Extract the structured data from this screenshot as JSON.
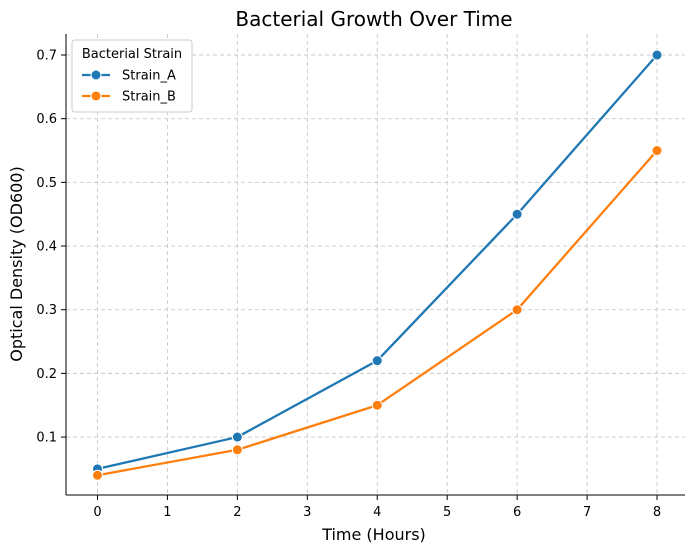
{
  "chart_data": {
    "type": "line",
    "title": "Bacterial Growth Over Time",
    "xlabel": "Time (Hours)",
    "ylabel": "Optical Density (OD600)",
    "xlim": [
      -0.45,
      8.4
    ],
    "ylim": [
      0.009,
      0.733
    ],
    "xticks": [
      0,
      1,
      2,
      3,
      4,
      5,
      6,
      7,
      8
    ],
    "yticks": [
      0.1,
      0.2,
      0.3,
      0.4,
      0.5,
      0.6,
      0.7
    ],
    "grid": true,
    "legend": {
      "title": "Bacterial Strain",
      "placement": "top-left"
    },
    "x": [
      0,
      2,
      4,
      6,
      8
    ],
    "series": [
      {
        "name": "Strain_A",
        "color": "#1f77b4",
        "values": [
          0.05,
          0.1,
          0.22,
          0.45,
          0.7
        ]
      },
      {
        "name": "Strain_B",
        "color": "#ff7f0e",
        "values": [
          0.04,
          0.08,
          0.15,
          0.3,
          0.55
        ]
      }
    ]
  }
}
